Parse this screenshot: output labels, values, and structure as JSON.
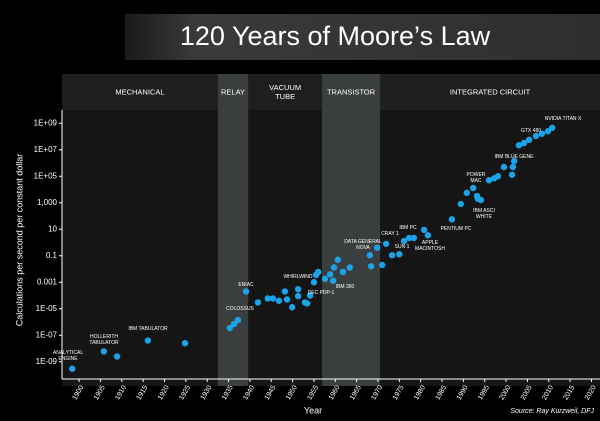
{
  "chart_data": {
    "type": "scatter",
    "title": "120 Years of Moore’s Law",
    "x_label": "Year",
    "y_label": "Calculations per second per constant dollar",
    "source": "Source: Ray Kurzweil, DFJ",
    "log_y": true,
    "color": "#1aa3e8",
    "xlim": [
      1896,
      2022
    ],
    "xticks": [
      1900,
      1905,
      1910,
      1915,
      1920,
      1925,
      1930,
      1935,
      1940,
      1945,
      1950,
      1955,
      1960,
      1965,
      1970,
      1975,
      1980,
      1985,
      1990,
      1995,
      2000,
      2005,
      2010,
      2015,
      2020
    ],
    "ylim": [
      1e-10,
      10000000000.0
    ],
    "yticks": [
      {
        "value": 1000000000.0,
        "label": "1E+09"
      },
      {
        "value": 10000000.0,
        "label": "1E+07"
      },
      {
        "value": 100000.0,
        "label": "1E+05"
      },
      {
        "value": 1000,
        "label": "1,000"
      },
      10,
      0.1,
      0.001,
      {
        "value": 1e-05,
        "label": "1E-05"
      },
      {
        "value": 1e-07,
        "label": "1E-07"
      },
      {
        "value": 1e-09,
        "label": "1E-09"
      }
    ],
    "eras": [
      {
        "label": "MECHANICAL",
        "start": 1896,
        "end": 1932.5,
        "highlight": false
      },
      {
        "label": "RELAY",
        "start": 1932.5,
        "end": 1939.6,
        "highlight": true
      },
      {
        "label": "VACUUM\nTUBE",
        "start": 1939.6,
        "end": 1956.9,
        "highlight": false
      },
      {
        "label": "TRANSISTOR",
        "start": 1956.9,
        "end": 1970.5,
        "highlight": true
      },
      {
        "label": "INTEGRATED CIRCUIT",
        "start": 1970.5,
        "end": 2022,
        "highlight": false
      }
    ],
    "x": [
      1898.4,
      1905.8,
      1908.9,
      1916.1,
      1924.8,
      1935.3,
      1936.3,
      1937.2,
      1939.1,
      1941.9,
      1944.2,
      1945.4,
      1946.8,
      1948.2,
      1948.7,
      1949.9,
      1951.3,
      1951.3,
      1952.9,
      1954.1,
      1955.0,
      1955.5,
      1956.0,
      1953.4,
      1957.6,
      1958.8,
      1959.7,
      1960.6,
      1959.5,
      1961.8,
      1963.4,
      1968.1,
      1968.4,
      1969.8,
      1971.0,
      1971.9,
      1973.3,
      1975.0,
      1976.1,
      1977.3,
      1978.4,
      1980.8,
      1981.7,
      1987.3,
      1989.4,
      1990.8,
      1992.3,
      1993.2,
      1993.4,
      1994.1,
      1996.0,
      1997.2,
      1998.1,
      1999.5,
      2001.4,
      2001.6,
      2001.9,
      2003.0,
      2004.2,
      2005.4,
      2007.0,
      2008.4,
      2009.8,
      2010.8
    ],
    "values": [
      3e-10,
      6e-09,
      2.5e-09,
      4e-08,
      2.5e-08,
      3.5e-07,
      7e-07,
      1.4e-06,
      0.0002,
      3e-05,
      6e-05,
      6e-05,
      4e-05,
      0.0002,
      5e-05,
      1.3e-05,
      0.0003,
      9e-05,
      3e-05,
      0.0001,
      0.001,
      0.0035,
      0.006,
      2.5e-05,
      0.0018,
      0.004,
      0.013,
      0.05,
      0.0013,
      0.006,
      0.013,
      0.11,
      0.016,
      0.4,
      0.02,
      0.8,
      0.11,
      0.13,
      1.3,
      2.2,
      2.2,
      9,
      3.5,
      56,
      800,
      5600,
      13000.0,
      3200,
      2000,
      1600,
      50000.0,
      70000.0,
      100000.0,
      500000.0,
      130000.0,
      500000.0,
      1400000.0,
      22000000.0,
      32000000.0,
      56000000.0,
      110000000.0,
      160000000.0,
      250000000.0,
      450000000.0
    ],
    "annotations": [
      "ANALYTICAL\nENGINE",
      "HOLLERITH\nTABULATOR",
      "IBM TABULATOR",
      "ENIAC",
      "COLOSSUS",
      "WHIRLWIND",
      "DEC PDP-1",
      "IBM 360",
      "DATA GENERAL\nNOVA",
      "CRAY 1",
      "SUN 1",
      "IBM PC",
      "APPLE\nMACINTOSH",
      "PENTIUM PC",
      "POWER\nMAC",
      "IBM ASCI\nWHITE",
      "IBM BLUE GENE",
      "GTX 480",
      "NVIDIA TITAN X"
    ]
  }
}
